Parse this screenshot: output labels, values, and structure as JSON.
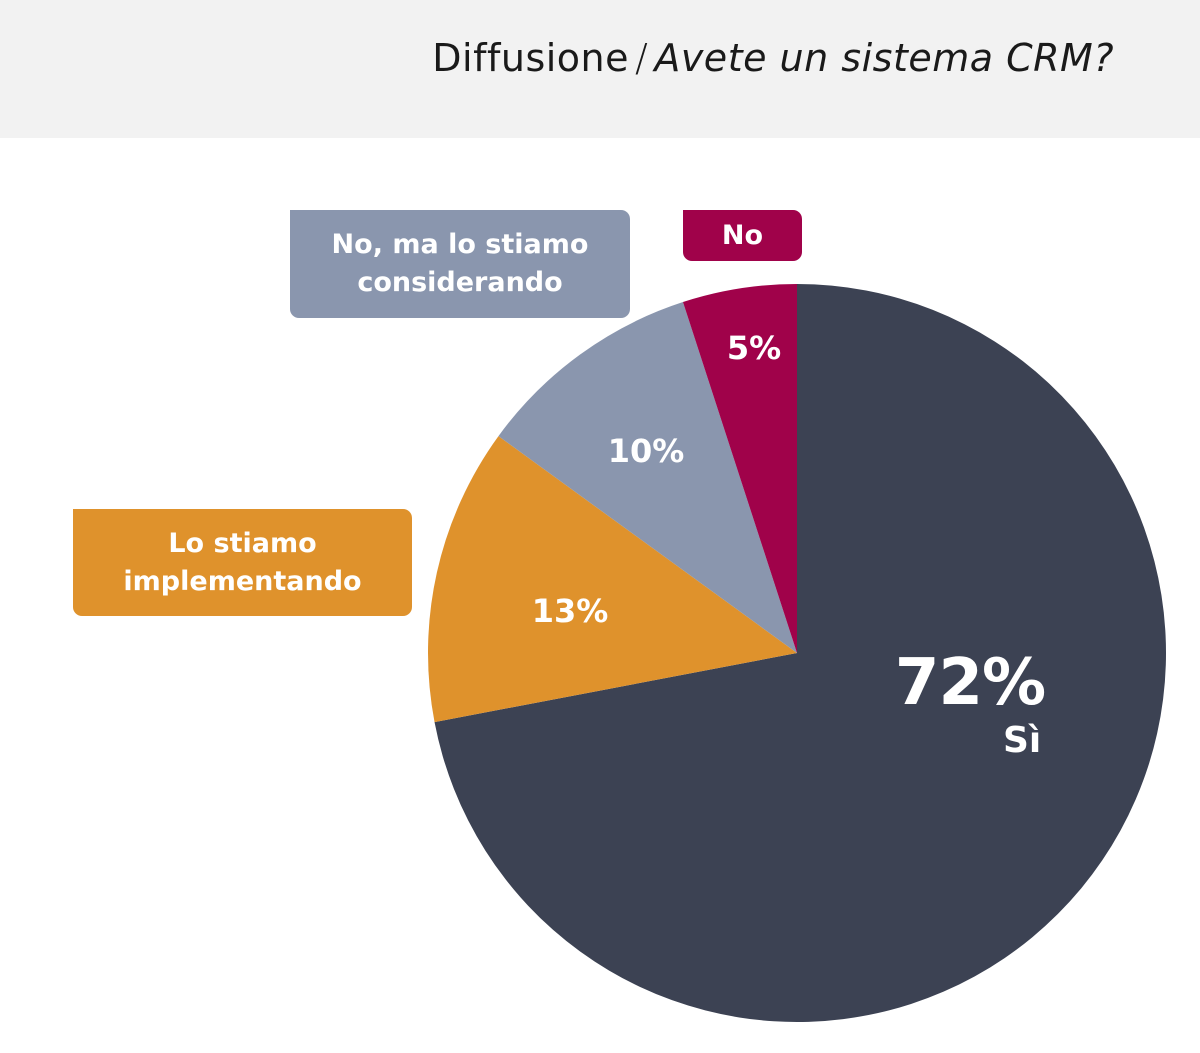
{
  "title": {
    "topic": "Diffusione",
    "separator": "/",
    "question": "Avete un sistema CRM?"
  },
  "colors": {
    "header_bg": "#f2f2f2",
    "si": "#3c4253",
    "no": "#a0024a",
    "considering": "#8a96ae",
    "implementing": "#df922c"
  },
  "chart_data": {
    "type": "pie",
    "title": "Avete un sistema CRM?",
    "start": "12 o'clock",
    "direction": "clockwise",
    "slices": [
      {
        "label": "Sì",
        "value": 72,
        "display": "72%",
        "color": "#3c4253"
      },
      {
        "label": "Lo stiamo implementando",
        "value": 13,
        "display": "13%",
        "color": "#df922c"
      },
      {
        "label": "No, ma lo stiamo considerando",
        "value": 10,
        "display": "10%",
        "color": "#8a96ae"
      },
      {
        "label": "No",
        "value": 5,
        "display": "5%",
        "color": "#a0024a"
      }
    ],
    "callouts": {
      "considering": [
        "No, ma lo stiamo",
        "considerando"
      ],
      "no": [
        "No"
      ],
      "implementing": [
        "Lo stiamo",
        "implementando"
      ],
      "si": [
        "Sì"
      ]
    }
  }
}
